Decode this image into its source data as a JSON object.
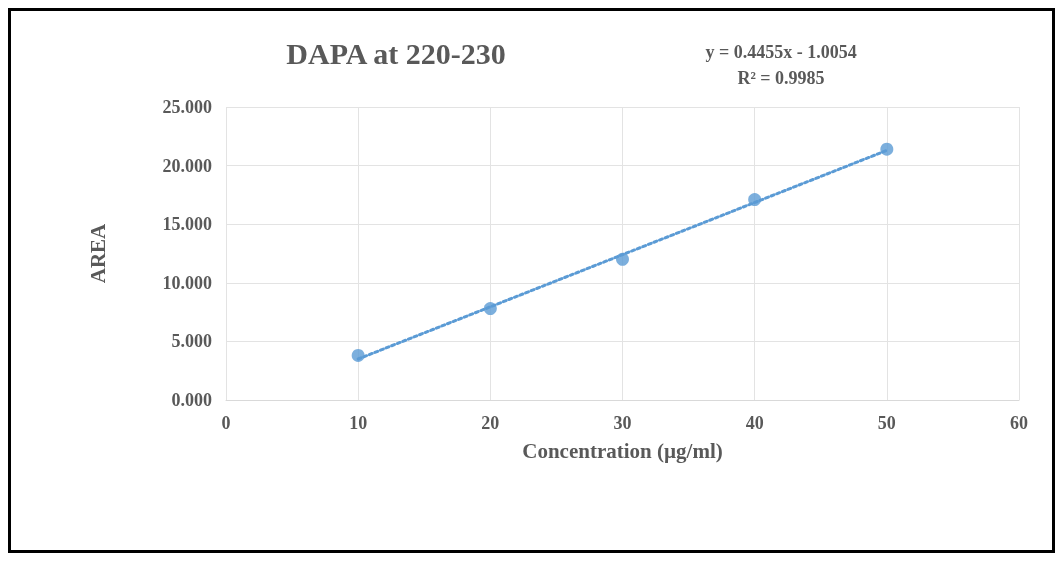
{
  "chart_data": {
    "type": "scatter",
    "title": "DAPA at 220-230",
    "xlabel": "Concentration (µg/ml)",
    "ylabel": "AREA",
    "annotations": [
      "y = 0.4455x - 1.0054",
      "R² = 0.9985"
    ],
    "x": [
      10,
      20,
      30,
      40,
      50
    ],
    "series": [
      {
        "color": "#5b9bd5",
        "values": [
          3.8,
          7.8,
          12.0,
          17.1,
          21.4
        ],
        "marker": "circle"
      },
      {
        "type": "line",
        "color": "#5b9bd5",
        "x": [
          10,
          50
        ],
        "values": [
          3.5,
          21.3
        ],
        "marker": "none",
        "line_style": "dotted"
      }
    ],
    "xlim": [
      0,
      60
    ],
    "xticks": [
      0,
      10,
      20,
      30,
      40,
      50,
      60
    ],
    "ylim": [
      0,
      25
    ],
    "yticks": [
      {
        "value": 0,
        "label": "0.000"
      },
      {
        "value": 5,
        "label": "5.000"
      },
      {
        "value": 10,
        "label": "10.000"
      },
      {
        "value": 15,
        "label": "15.000"
      },
      {
        "value": 20,
        "label": "20.000"
      },
      {
        "value": 25,
        "label": "25.000"
      }
    ],
    "grid": true
  }
}
